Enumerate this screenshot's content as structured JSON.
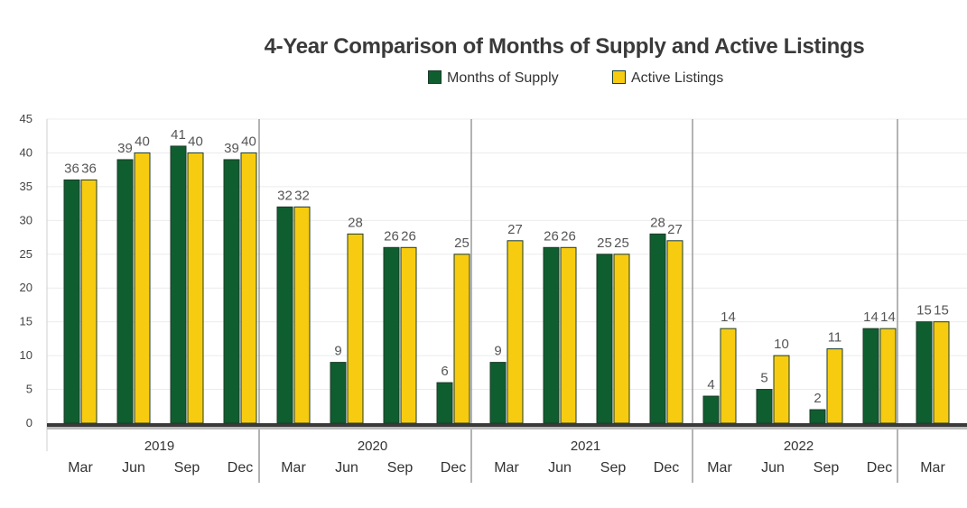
{
  "chart_data": {
    "type": "bar",
    "title": "4-Year Comparison of Months of Supply and Active Listings",
    "xlabel": "",
    "ylabel": "",
    "ylim": [
      0,
      45
    ],
    "yticks": [
      0,
      5,
      10,
      15,
      20,
      25,
      30,
      35,
      40,
      45
    ],
    "grid": true,
    "legend_position": "top-center",
    "years": [
      "2019",
      "2020",
      "2021",
      "2022"
    ],
    "categories": [
      "Mar",
      "Jun",
      "Sep",
      "Dec",
      "Mar",
      "Jun",
      "Sep",
      "Dec",
      "Mar",
      "Jun",
      "Sep",
      "Dec",
      "Mar",
      "Jun",
      "Sep",
      "Dec",
      "Mar"
    ],
    "series": [
      {
        "name": "Months of Supply",
        "color": "#0f5e30",
        "values": [
          36,
          39,
          41,
          39,
          32,
          9,
          26,
          6,
          9,
          26,
          25,
          28,
          4,
          5,
          2,
          14,
          15
        ]
      },
      {
        "name": "Active Listings",
        "color": "#f7cc10",
        "values": [
          36,
          40,
          40,
          40,
          32,
          28,
          26,
          25,
          27,
          26,
          25,
          27,
          14,
          10,
          11,
          14,
          15
        ]
      }
    ]
  }
}
